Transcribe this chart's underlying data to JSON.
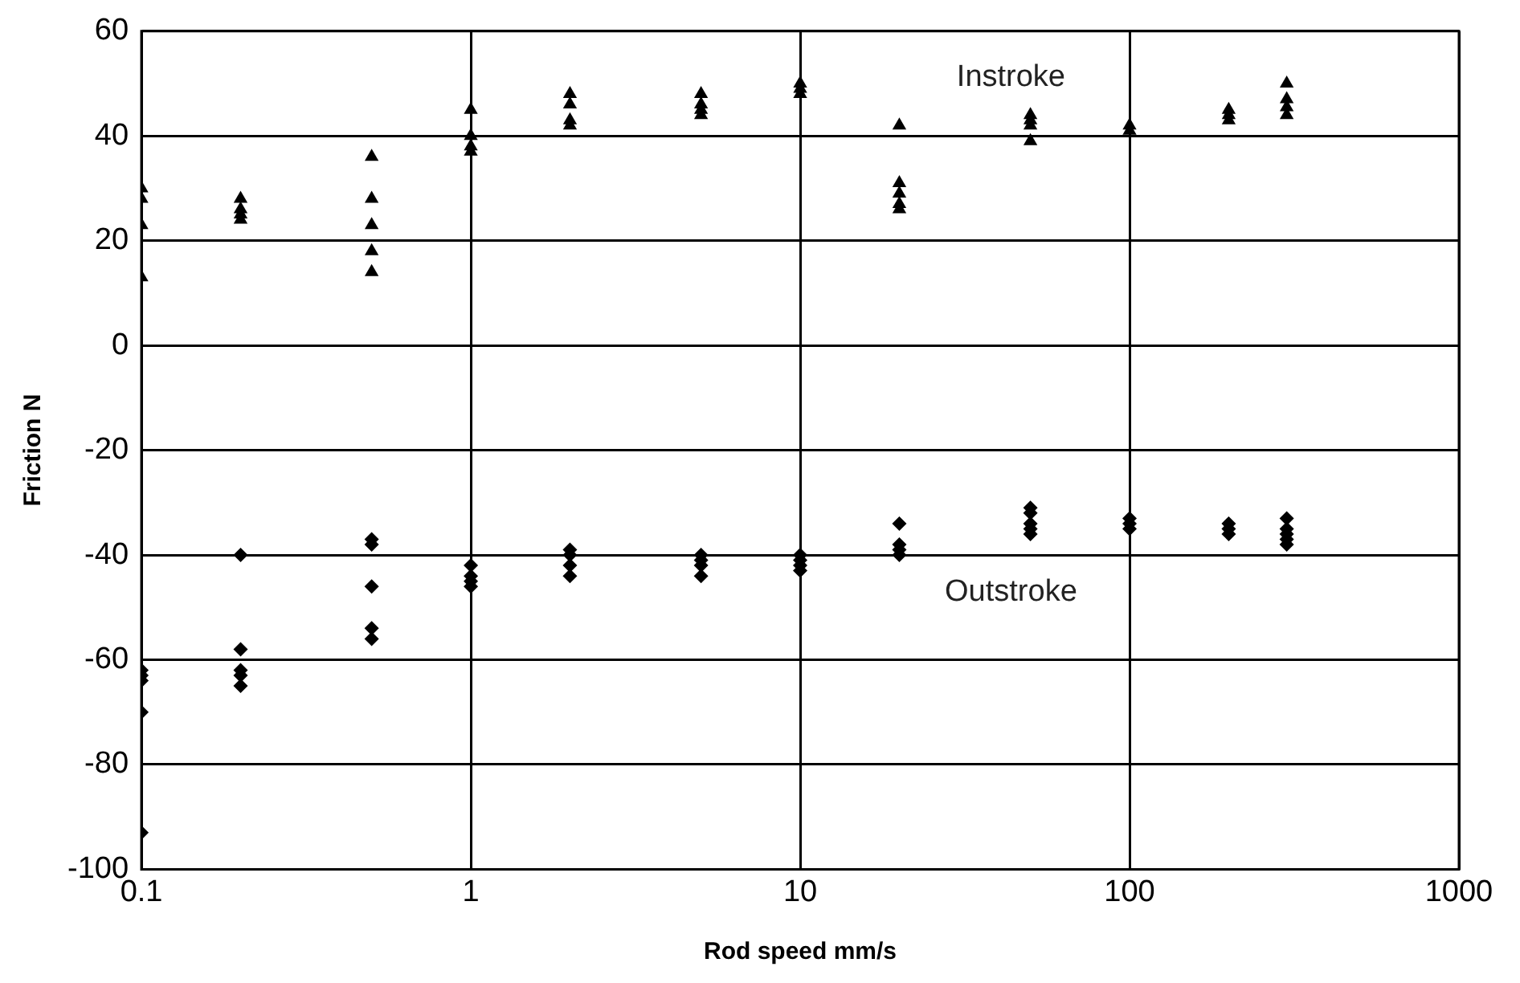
{
  "chart_data": {
    "type": "scatter",
    "xlabel": "Rod speed mm/s",
    "ylabel": "Friction N",
    "log": "x",
    "xlim": [
      0.1,
      1000
    ],
    "xticks": [
      0.1,
      1,
      10,
      100,
      1000
    ],
    "ylim": [
      -100,
      60
    ],
    "yticks": [
      -100,
      -80,
      -60,
      -40,
      -20,
      0,
      20,
      40,
      60
    ],
    "grid": true,
    "legend": false,
    "series": [
      {
        "name": "Instroke",
        "color": "#000000",
        "marker": "triangle",
        "x": [
          0.1,
          0.1,
          0.1,
          0.1,
          0.2,
          0.2,
          0.2,
          0.2,
          0.5,
          0.5,
          0.5,
          0.5,
          0.5,
          1,
          1,
          1,
          1,
          2,
          2,
          2,
          2,
          5,
          5,
          5,
          5,
          10,
          10,
          10,
          20,
          20,
          20,
          20,
          20,
          50,
          50,
          50,
          50,
          100,
          100,
          200,
          200,
          200,
          300,
          300,
          300,
          300
        ],
        "values": [
          30,
          28,
          23,
          13,
          28,
          26,
          25,
          24,
          36,
          28,
          23,
          18,
          14,
          45,
          40,
          38,
          37,
          48,
          46,
          43,
          42,
          48,
          46,
          45,
          44,
          50,
          49,
          48,
          42,
          31,
          29,
          27,
          26,
          44,
          43,
          42,
          39,
          42,
          41,
          45,
          44,
          43,
          50,
          47,
          45.5,
          44
        ]
      },
      {
        "name": "Outstroke",
        "color": "#000000",
        "marker": "diamond",
        "x": [
          0.1,
          0.1,
          0.1,
          0.1,
          0.1,
          0.2,
          0.2,
          0.2,
          0.2,
          0.2,
          0.5,
          0.5,
          0.5,
          0.5,
          0.5,
          1,
          1,
          1,
          1,
          2,
          2,
          2,
          2,
          5,
          5,
          5,
          5,
          10,
          10,
          10,
          10,
          20,
          20,
          20,
          20,
          50,
          50,
          50,
          50,
          50,
          100,
          100,
          100,
          200,
          200,
          200,
          300,
          300,
          300,
          300,
          300
        ],
        "values": [
          -62,
          -63,
          -64,
          -70,
          -93,
          -40,
          -58,
          -62,
          -63,
          -65,
          -37,
          -38,
          -46,
          -54,
          -56,
          -42,
          -44,
          -45,
          -46,
          -39,
          -40,
          -42,
          -44,
          -40,
          -41,
          -42,
          -44,
          -40,
          -41,
          -42,
          -43,
          -34,
          -38,
          -39,
          -40,
          -31,
          -32,
          -34,
          -35,
          -36,
          -33,
          -34,
          -35,
          -34,
          -35,
          -36,
          -33,
          -35,
          -36,
          -37,
          -38
        ]
      }
    ]
  }
}
